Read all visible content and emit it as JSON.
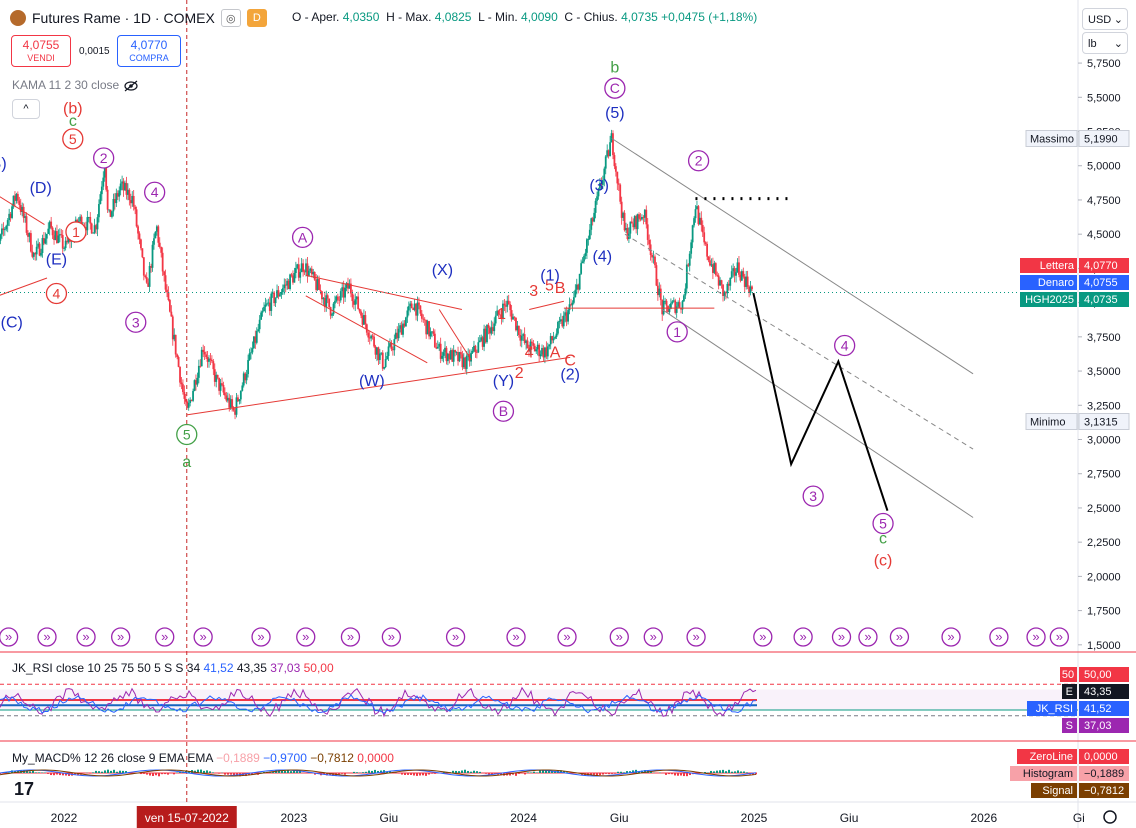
{
  "header": {
    "title": "Futures Rame · 1D · COMEX",
    "flag_1": "◎",
    "flag_2": "D",
    "ohlc": [
      {
        "label": "O - Aper.",
        "value": "4,0350"
      },
      {
        "label": "H - Max.",
        "value": "4,0825"
      },
      {
        "label": "L - Min.",
        "value": "4,0090"
      },
      {
        "label": "C - Chius.",
        "value": "4,0735"
      },
      {
        "label": "",
        "value": "+0,0475 (+1,18%)"
      }
    ]
  },
  "trade": {
    "sell_price": "4,0755",
    "sell_label": "VENDI",
    "spread": "0,0015",
    "buy_price": "4,0770",
    "buy_label": "COMPRA"
  },
  "indicator_kama": "KAMA 11 2 30 close",
  "collapse_label": "^",
  "unit_currency": "USD",
  "unit_weight": "lb",
  "colors": {
    "up": "#089981",
    "down": "#f23645",
    "purple": "#9c27b0",
    "blue": "#2962ff",
    "red": "#e53935",
    "green": "#43a047",
    "dark_blue": "#1e2fc0"
  },
  "chart_data": {
    "type": "candlestick",
    "title": "Futures Rame · 1D · COMEX",
    "y_ticks": [
      "1,5000",
      "1,7500",
      "2,0000",
      "2,2500",
      "2,5000",
      "2,7500",
      "3,0000",
      "3,2500",
      "3,5000",
      "3,7500",
      "4,0000",
      "4,2500",
      "4,5000",
      "4,7500",
      "5,0000",
      "5,2500",
      "5,5000",
      "5,7500"
    ],
    "x_ticks": [
      "2022",
      "ven 15-07-2022",
      "2023",
      "Giu",
      "2024",
      "Giu",
      "2025",
      "Giu",
      "2026",
      "Gi"
    ],
    "ylim": [
      1.45,
      5.95
    ],
    "xlim": [
      "2021-09",
      "2026-06"
    ],
    "price_path": [
      [
        "2021-09-06",
        4.25
      ],
      [
        "2021-10-18",
        4.8
      ],
      [
        "2021-11-15",
        4.33
      ],
      [
        "2021-12-10",
        4.55
      ],
      [
        "2022-01-03",
        4.4
      ],
      [
        "2022-01-25",
        4.6
      ],
      [
        "2022-02-20",
        4.55
      ],
      [
        "2022-03-07",
        5.04
      ],
      [
        "2022-03-12",
        4.6
      ],
      [
        "2022-04-01",
        4.85
      ],
      [
        "2022-04-20",
        4.76
      ],
      [
        "2022-05-12",
        4.08
      ],
      [
        "2022-05-28",
        4.56
      ],
      [
        "2022-06-10",
        4.13
      ],
      [
        "2022-07-15",
        3.18
      ],
      [
        "2022-08-10",
        3.68
      ],
      [
        "2022-09-01",
        3.42
      ],
      [
        "2022-09-28",
        3.2
      ],
      [
        "2022-11-15",
        3.95
      ],
      [
        "2023-01-17",
        4.28
      ],
      [
        "2023-03-01",
        3.95
      ],
      [
        "2023-03-30",
        4.12
      ],
      [
        "2023-05-23",
        3.55
      ],
      [
        "2023-07-10",
        4.0
      ],
      [
        "2023-08-20",
        3.65
      ],
      [
        "2023-10-03",
        3.56
      ],
      [
        "2023-12-05",
        4.0
      ],
      [
        "2024-01-05",
        3.68
      ],
      [
        "2024-02-05",
        3.64
      ],
      [
        "2024-03-20",
        4.0
      ],
      [
        "2024-05-20",
        5.2
      ],
      [
        "2024-06-10",
        4.5
      ],
      [
        "2024-07-10",
        4.66
      ],
      [
        "2024-08-08",
        3.95
      ],
      [
        "2024-09-10",
        4.0
      ],
      [
        "2024-09-30",
        4.72
      ],
      [
        "2024-10-15",
        4.4
      ],
      [
        "2024-11-15",
        4.05
      ],
      [
        "2024-12-05",
        4.26
      ],
      [
        "2024-12-31",
        4.07
      ]
    ],
    "forecast_path": [
      [
        "2024-12-31",
        4.07
      ],
      [
        "2025-03-01",
        2.82
      ],
      [
        "2025-05-15",
        3.57
      ],
      [
        "2025-08-01",
        2.48
      ]
    ],
    "channel_upper": [
      [
        "2024-05-20",
        5.2
      ],
      [
        "2025-12-15",
        3.48
      ]
    ],
    "channel_mid": [
      [
        "2024-06-10",
        4.5
      ],
      [
        "2025-12-15",
        2.93
      ]
    ],
    "channel_lower": [
      [
        "2024-08-08",
        3.95
      ],
      [
        "2025-12-15",
        2.43
      ]
    ],
    "dotted_resistance": [
      [
        "2024-09-30",
        4.76
      ],
      [
        "2025-02-25",
        4.76
      ]
    ],
    "price_levels": [
      {
        "label": "Massimo",
        "value": "5,1990",
        "y": 5.199
      },
      {
        "label": "Minimo",
        "value": "3,1315",
        "y": 3.1315
      }
    ],
    "price_tags": [
      {
        "label": "Lettera",
        "value": "4,0770",
        "y": 4.077,
        "color": "#f23645"
      },
      {
        "label": "Denaro",
        "value": "4,0755",
        "y": 4.0755,
        "color": "#2962ff"
      },
      {
        "label": "HGH2025",
        "value": "4,0735",
        "y": 4.0735,
        "color": "#089981"
      }
    ],
    "wave_labels": [
      {
        "text": "(B)",
        "date": "2021-09-15",
        "y": 4.98,
        "color": "#1e2fc0",
        "circled": false
      },
      {
        "text": "(D)",
        "date": "2021-11-25",
        "y": 4.8,
        "color": "#1e2fc0",
        "circled": false
      },
      {
        "text": "(E)",
        "date": "2021-12-20",
        "y": 4.28,
        "color": "#1e2fc0",
        "circled": false
      },
      {
        "text": "(C)",
        "date": "2021-10-10",
        "y": 3.82,
        "color": "#1e2fc0",
        "circled": false
      },
      {
        "text": "4",
        "date": "2021-12-20",
        "y": 4.03,
        "color": "#e53935",
        "circled": true
      },
      {
        "text": "1",
        "date": "2022-01-20",
        "y": 4.48,
        "color": "#e53935",
        "circled": true
      },
      {
        "text": "(b)",
        "date": "2022-01-15",
        "y": 5.38,
        "color": "#e53935",
        "circled": false
      },
      {
        "text": "c",
        "date": "2022-01-15",
        "y": 5.29,
        "color": "#43a047",
        "circled": false
      },
      {
        "text": "5",
        "date": "2022-01-15",
        "y": 5.16,
        "color": "#e53935",
        "circled": true
      },
      {
        "text": "2",
        "date": "2022-03-05",
        "y": 5.02,
        "color": "#9c27b0",
        "circled": true
      },
      {
        "text": "4",
        "date": "2022-05-25",
        "y": 4.77,
        "color": "#9c27b0",
        "circled": true
      },
      {
        "text": "3",
        "date": "2022-04-25",
        "y": 3.82,
        "color": "#9c27b0",
        "circled": true
      },
      {
        "text": "5",
        "date": "2022-07-15",
        "y": 3.0,
        "color": "#43a047",
        "circled": true
      },
      {
        "text": "a",
        "date": "2022-07-15",
        "y": 2.8,
        "color": "#43a047",
        "circled": false
      },
      {
        "text": "A",
        "date": "2023-01-15",
        "y": 4.44,
        "color": "#9c27b0",
        "circled": true
      },
      {
        "text": "(X)",
        "date": "2023-08-25",
        "y": 4.2,
        "color": "#1e2fc0",
        "circled": false
      },
      {
        "text": "(W)",
        "date": "2023-05-05",
        "y": 3.39,
        "color": "#1e2fc0",
        "circled": false
      },
      {
        "text": "(Y)",
        "date": "2023-11-30",
        "y": 3.39,
        "color": "#1e2fc0",
        "circled": false
      },
      {
        "text": "B",
        "date": "2023-11-30",
        "y": 3.17,
        "color": "#9c27b0",
        "circled": true
      },
      {
        "text": "1",
        "date": "2023-11-27",
        "y": 3.88,
        "color": "#e53935",
        "circled": false
      },
      {
        "text": "3",
        "date": "2024-01-17",
        "y": 4.05,
        "color": "#e53935",
        "circled": false
      },
      {
        "text": "5",
        "date": "2024-02-11",
        "y": 4.09,
        "color": "#e53935",
        "circled": false
      },
      {
        "text": "B",
        "date": "2024-02-28",
        "y": 4.07,
        "color": "#e53935",
        "circled": false
      },
      {
        "text": "(1)",
        "date": "2024-02-12",
        "y": 4.16,
        "color": "#1e2fc0",
        "circled": false
      },
      {
        "text": "4",
        "date": "2024-01-10",
        "y": 3.6,
        "color": "#e53935",
        "circled": false
      },
      {
        "text": "A",
        "date": "2024-02-20",
        "y": 3.6,
        "color": "#e53935",
        "circled": false
      },
      {
        "text": "2",
        "date": "2023-12-25",
        "y": 3.45,
        "color": "#e53935",
        "circled": false
      },
      {
        "text": "C",
        "date": "2024-03-15",
        "y": 3.54,
        "color": "#e53935",
        "circled": false
      },
      {
        "text": "(2)",
        "date": "2024-03-15",
        "y": 3.44,
        "color": "#1e2fc0",
        "circled": false
      },
      {
        "text": "(3)",
        "date": "2024-04-30",
        "y": 4.82,
        "color": "#1e2fc0",
        "circled": false
      },
      {
        "text": "(4)",
        "date": "2024-05-05",
        "y": 4.3,
        "color": "#1e2fc0",
        "circled": false
      },
      {
        "text": "b",
        "date": "2024-05-25",
        "y": 5.68,
        "color": "#43a047",
        "circled": false
      },
      {
        "text": "C",
        "date": "2024-05-25",
        "y": 5.53,
        "color": "#9c27b0",
        "circled": true
      },
      {
        "text": "(5)",
        "date": "2024-05-25",
        "y": 5.35,
        "color": "#1e2fc0",
        "circled": false
      },
      {
        "text": "2",
        "date": "2024-10-05",
        "y": 5.0,
        "color": "#9c27b0",
        "circled": true
      },
      {
        "text": "1",
        "date": "2024-09-01",
        "y": 3.75,
        "color": "#9c27b0",
        "circled": true
      },
      {
        "text": "4",
        "date": "2025-05-25",
        "y": 3.65,
        "color": "#9c27b0",
        "circled": true
      },
      {
        "text": "3",
        "date": "2025-04-05",
        "y": 2.55,
        "color": "#9c27b0",
        "circled": true
      },
      {
        "text": "5",
        "date": "2025-07-25",
        "y": 2.35,
        "color": "#9c27b0",
        "circled": true
      },
      {
        "text": "c",
        "date": "2025-07-25",
        "y": 2.24,
        "color": "#43a047",
        "circled": false
      },
      {
        "text": "(c)",
        "date": "2025-07-25",
        "y": 2.08,
        "color": "#e53935",
        "circled": false
      }
    ],
    "event_dates": [
      "2021-10-05",
      "2021-12-05",
      "2022-02-05",
      "2022-04-01",
      "2022-06-10",
      "2022-08-10",
      "2022-11-10",
      "2023-01-20",
      "2023-04-01",
      "2023-06-05",
      "2023-09-15",
      "2023-12-20",
      "2024-03-10",
      "2024-06-01",
      "2024-07-25",
      "2024-10-01",
      "2025-01-15",
      "2025-03-20",
      "2025-05-20",
      "2025-07-01",
      "2025-08-20",
      "2025-11-10",
      "2026-01-25",
      "2026-03-25",
      "2026-05-01"
    ]
  },
  "rsi": {
    "label": "JK_RSI close 10 25 75 50 5 S S 34",
    "values": [
      "41,52",
      "43,35",
      "37,03",
      "50,00"
    ],
    "tags": [
      {
        "label": "50",
        "value": "50,00",
        "color": "#f23645"
      },
      {
        "label": "E",
        "value": "43,35",
        "color": "#131722"
      },
      {
        "label": "JK_RSI",
        "value": "41,52",
        "color": "#2962ff"
      },
      {
        "label": "S",
        "value": "37,03",
        "color": "#9c27b0"
      }
    ]
  },
  "macd": {
    "label": "My_MACD% 12 26 close 9 EMA EMA",
    "values": [
      "−0,1889",
      "−0,9700",
      "−0,7812",
      "0,0000"
    ],
    "tags": [
      {
        "label": "ZeroLine",
        "value": "0,0000",
        "color": "#f23645"
      },
      {
        "label": "Histogram",
        "value": "−0,1889",
        "color": "#f7a1a8",
        "text_color": "#131722"
      },
      {
        "label": "Signal",
        "value": "−0,7812",
        "color": "#7b3f00"
      }
    ]
  }
}
